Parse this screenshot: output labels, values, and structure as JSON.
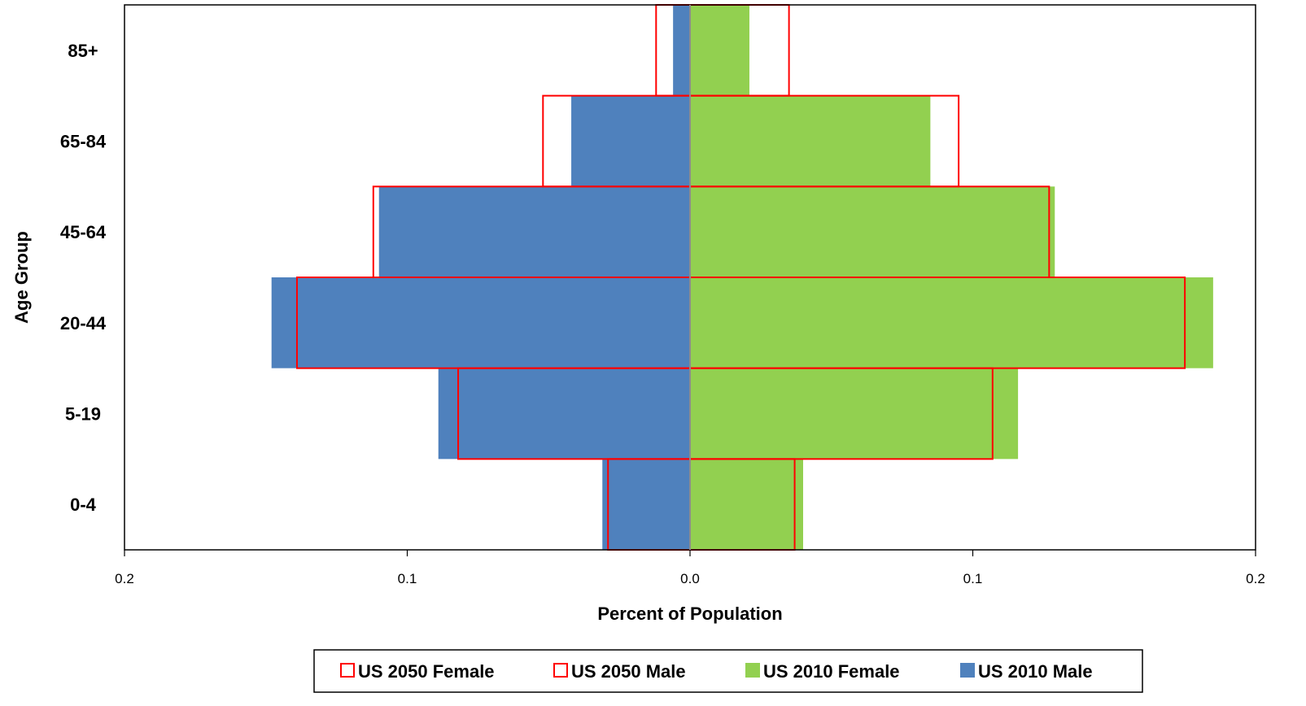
{
  "chart_data": {
    "type": "bar",
    "orientation": "horizontal",
    "subtype": "population-pyramid",
    "title": "",
    "xlabel": "Percent of Population",
    "ylabel": "Age Group",
    "categories": [
      "0-4",
      "5-19",
      "20-44",
      "45-64",
      "65-84",
      "85+"
    ],
    "x_ticks": [
      "0.2",
      "0.1",
      "0.0",
      "0.1",
      "0.2"
    ],
    "xlim": [
      -0.2,
      0.2
    ],
    "grid": false,
    "legend_position": "bottom",
    "series": [
      {
        "name": "US 2050 Female",
        "style": "outline",
        "side": "right",
        "color": "#ff0000",
        "values": [
          0.037,
          0.107,
          0.175,
          0.127,
          0.095,
          0.035
        ]
      },
      {
        "name": "US 2050 Male",
        "style": "outline",
        "side": "left",
        "color": "#ff0000",
        "values": [
          0.029,
          0.082,
          0.139,
          0.112,
          0.052,
          0.012
        ]
      },
      {
        "name": "US 2010 Female",
        "style": "fill",
        "side": "right",
        "color": "#92d050",
        "values": [
          0.04,
          0.116,
          0.185,
          0.129,
          0.085,
          0.021
        ]
      },
      {
        "name": "US 2010 Male",
        "style": "fill",
        "side": "left",
        "color": "#4f81bd",
        "values": [
          0.031,
          0.089,
          0.148,
          0.11,
          0.042,
          0.006
        ]
      }
    ]
  }
}
